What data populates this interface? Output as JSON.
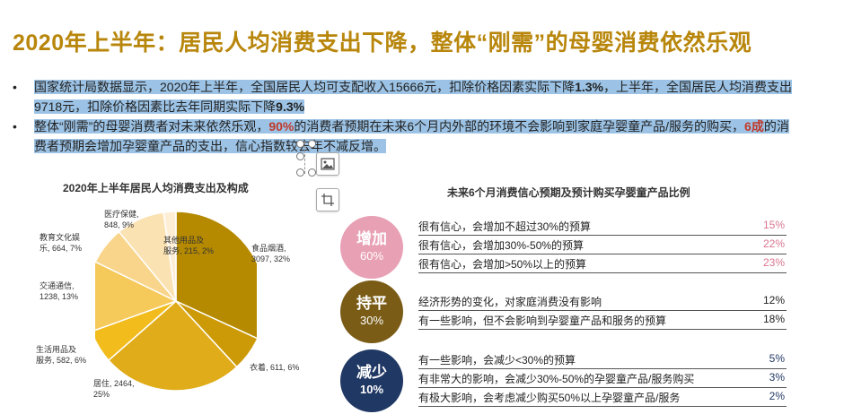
{
  "title": "2020年上半年：居民人均消费支出下降，整体“刚需”的母婴消费依然乐观",
  "bullets": [
    {
      "parts": [
        "国家统计局数据显示，2020年上半年，全国居民人均可支配收入15666元，扣除价格因素实际下降",
        "1.3%",
        "，上半年，全国居民人均消费支出9718元，扣除价格因素比去年同期实际下降",
        "9.3%"
      ]
    },
    {
      "parts": [
        "整体“刚需”的母婴消费者对未来依然乐观，",
        "90%",
        "的消费者预期在未来6个月内外部的环境不会影响到家庭孕婴童产品/服务的购买，",
        "6成",
        "的消费者预期会增加孕婴童产品的支出，信心指数较去年不减反增。"
      ]
    }
  ],
  "pie_chart": {
    "title": "2020年上半年居民人均消费支出及构成",
    "labels": {
      "food": [
        "食品烟酒,",
        "3097, 32%"
      ],
      "clothing": [
        "衣着, 611, 6%"
      ],
      "housing": [
        "居住, 2464,",
        "25%"
      ],
      "daily": [
        "生活用品及",
        "服务, 582, 6%"
      ],
      "transport": [
        "交通通信,",
        "1238, 13%"
      ],
      "education": [
        "教育文化娱",
        "乐, 664, 7%"
      ],
      "medical": [
        "医疗保健,",
        "848, 9%"
      ],
      "other": [
        "其他用品及",
        "服务, 215, 2%"
      ]
    }
  },
  "chart_data": {
    "type": "pie",
    "title": "2020年上半年居民人均消费支出及构成",
    "slices": [
      {
        "name": "食品烟酒",
        "value": 3097,
        "percent": 32,
        "color": "#b58a00"
      },
      {
        "name": "衣着",
        "value": 611,
        "percent": 6,
        "color": "#cc9a06"
      },
      {
        "name": "居住",
        "value": 2464,
        "percent": 25,
        "color": "#e0ac1a"
      },
      {
        "name": "生活用品及服务",
        "value": 582,
        "percent": 6,
        "color": "#f2bc1c"
      },
      {
        "name": "交通通信",
        "value": 1238,
        "percent": 13,
        "color": "#f5c95a"
      },
      {
        "name": "教育文化娱乐",
        "value": 664,
        "percent": 7,
        "color": "#f8d58a"
      },
      {
        "name": "医疗保健",
        "value": 848,
        "percent": 9,
        "color": "#fbe2b2"
      },
      {
        "name": "其他用品及服务",
        "value": 215,
        "percent": 2,
        "color": "#fdeed5"
      }
    ]
  },
  "confidence": {
    "title": "未来6个月消费信心预期及预计购买孕婴童产品比例",
    "groups": [
      {
        "label": "增加",
        "percent": "60%",
        "color": "#e8a0b4",
        "pct_color": "#d9768f",
        "items": [
          {
            "text": "很有信心，会增加不超过30%的预算",
            "pct": "15%"
          },
          {
            "text": "很有信心，会增加30%-50%的预算",
            "pct": "22%"
          },
          {
            "text": "很有信心，会增加>50%以上的预算",
            "pct": "23%"
          }
        ]
      },
      {
        "label": "持平",
        "percent": "30%",
        "color": "#7a5c16",
        "pct_color": "#333333",
        "items": [
          {
            "text": "经济形势的变化，对家庭消费没有影响",
            "pct": "12%"
          },
          {
            "text": "有一些影响，但不会影响到孕婴童产品和服务的预算",
            "pct": "18%"
          }
        ]
      },
      {
        "label": "减少",
        "percent": "10%",
        "color": "#203864",
        "pct_color": "#203864",
        "items": [
          {
            "text": "有一些影响，会减少<30%的预算",
            "pct": "5%"
          },
          {
            "text": "有非常大的影响，会减少30%-50%的孕婴童产品/服务购买",
            "pct": "3%"
          },
          {
            "text": "有极大影响，会考虑减少购买50%以上孕婴童产品/服务",
            "pct": "2%"
          }
        ]
      }
    ]
  },
  "floating_toolbar": {
    "icons": [
      "image-icon",
      "crop-icon"
    ]
  }
}
